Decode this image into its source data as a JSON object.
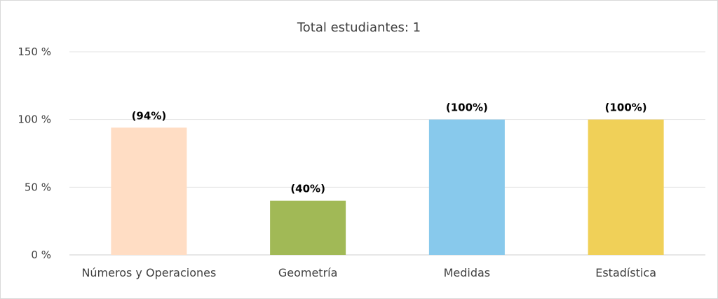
{
  "chart_data": {
    "type": "bar",
    "title": "Total estudiantes: 1",
    "categories": [
      "Números y Operaciones",
      "Geometría",
      "Medidas",
      "Estadística"
    ],
    "values": [
      94,
      40,
      100,
      100
    ],
    "data_labels": [
      "(94%)",
      "(40%)",
      "(100%)",
      "(100%)"
    ],
    "bar_colors": [
      "#FFDDC4",
      "#A1B956",
      "#88C9EC",
      "#F0D058"
    ],
    "ylim": [
      0,
      150
    ],
    "yticks": [
      0,
      50,
      100,
      150
    ],
    "ytick_labels": [
      "0 %",
      "50 %",
      "100 %",
      "150 %"
    ],
    "grid": true,
    "legend": false
  }
}
